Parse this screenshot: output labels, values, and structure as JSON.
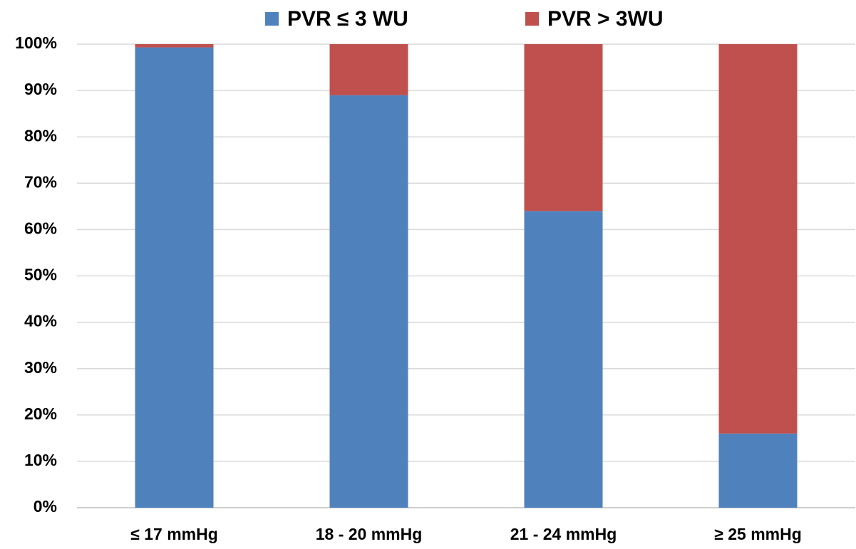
{
  "chart_data": {
    "type": "stacked_bar",
    "categories": [
      "≤ 17 mmHg",
      "18 - 20 mmHg",
      "21 - 24 mmHg",
      "≥ 25 mmHg"
    ],
    "series": [
      {
        "name": "PVR ≤ 3 WU",
        "color": "#4f81bd",
        "values": [
          99.3,
          89,
          64,
          16
        ]
      },
      {
        "name": "PVR > 3WU",
        "color": "#c0504d",
        "values": [
          0.7,
          11,
          36,
          84
        ]
      }
    ],
    "ylim": [
      0,
      100
    ],
    "yticks": [
      {
        "value": 0,
        "label": "0%"
      },
      {
        "value": 10,
        "label": "10%"
      },
      {
        "value": 20,
        "label": "20%"
      },
      {
        "value": 30,
        "label": "30%"
      },
      {
        "value": 40,
        "label": "40%"
      },
      {
        "value": 50,
        "label": "50%"
      },
      {
        "value": 60,
        "label": "60%"
      },
      {
        "value": 70,
        "label": "70%"
      },
      {
        "value": 80,
        "label": "80%"
      },
      {
        "value": 90,
        "label": "90%"
      },
      {
        "value": 100,
        "label": "100%"
      }
    ],
    "grid": true,
    "legend": "top"
  }
}
